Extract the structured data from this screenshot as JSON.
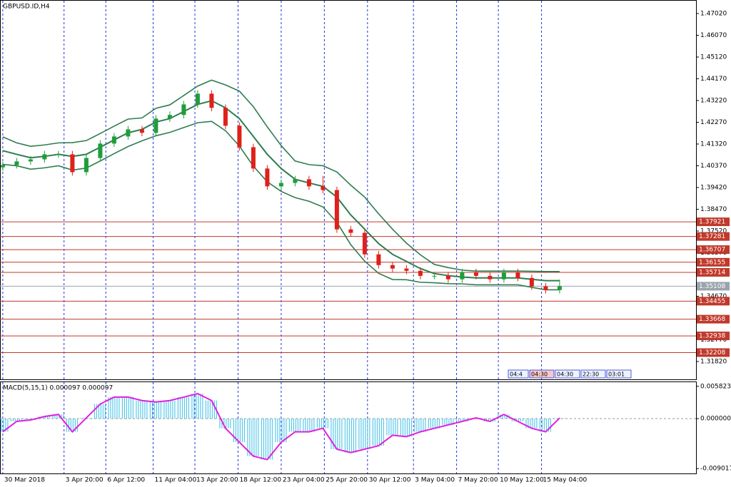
{
  "chart_data": [
    {
      "type": "candlestick",
      "title": "GBPUSD.ID,H4",
      "open": [
        1.403,
        1.404,
        1.4056,
        1.4065,
        1.4087,
        1.4087,
        1.4009,
        1.4071,
        1.4134,
        1.4165,
        1.4196,
        1.4181,
        1.4243,
        1.4259,
        1.4305,
        1.4352,
        1.429,
        1.4212,
        1.4118,
        1.4025,
        1.3947,
        1.3962,
        1.3978,
        1.3947,
        1.3931,
        1.3759,
        1.3744,
        1.365,
        1.3603,
        1.3588,
        1.3578,
        1.3556,
        1.3556,
        1.3541,
        1.3572,
        1.3556,
        1.3541,
        1.3572,
        1.3547,
        1.351,
        1.3494
      ],
      "high": [
        1.4055,
        1.4071,
        1.408,
        1.4102,
        1.4102,
        1.4102,
        1.4086,
        1.4149,
        1.418,
        1.4211,
        1.4211,
        1.4258,
        1.4274,
        1.432,
        1.4367,
        1.4367,
        1.4305,
        1.4227,
        1.4133,
        1.404,
        1.3977,
        1.3993,
        1.3993,
        1.3993,
        1.3946,
        1.3774,
        1.3759,
        1.3665,
        1.3618,
        1.3603,
        1.3593,
        1.3571,
        1.3571,
        1.3587,
        1.3587,
        1.3571,
        1.3587,
        1.3587,
        1.3562,
        1.3525,
        1.354
      ],
      "low": [
        1.4015,
        1.4025,
        1.4041,
        1.405,
        1.4072,
        1.3994,
        1.3994,
        1.4056,
        1.4119,
        1.415,
        1.4166,
        1.4166,
        1.4228,
        1.4244,
        1.429,
        1.4275,
        1.4197,
        1.4103,
        1.401,
        1.3932,
        1.3932,
        1.3947,
        1.3932,
        1.3916,
        1.3744,
        1.3729,
        1.3635,
        1.3588,
        1.3573,
        1.3563,
        1.3541,
        1.3541,
        1.3526,
        1.3526,
        1.3541,
        1.3526,
        1.3526,
        1.3532,
        1.3495,
        1.3479,
        1.3479
      ],
      "close": [
        1.404,
        1.4056,
        1.4065,
        1.4087,
        1.4087,
        1.4009,
        1.4071,
        1.4134,
        1.4165,
        1.4196,
        1.4181,
        1.4243,
        1.4259,
        1.4305,
        1.4352,
        1.429,
        1.4212,
        1.4118,
        1.4025,
        1.3947,
        1.3962,
        1.3978,
        1.3947,
        1.3931,
        1.3759,
        1.3744,
        1.365,
        1.3603,
        1.3588,
        1.3578,
        1.3556,
        1.3556,
        1.3541,
        1.3572,
        1.3556,
        1.3541,
        1.3572,
        1.3547,
        1.351,
        1.3494,
        1.3511
      ],
      "up_color": "#1f9d3a",
      "down_color": "#e0201b",
      "series": [
        {
          "color": "#2e7d4f",
          "values": [
            1.4163,
            1.4137,
            1.4122,
            1.4128,
            1.4137,
            1.4138,
            1.4147,
            1.4178,
            1.421,
            1.4241,
            1.4246,
            1.4288,
            1.4303,
            1.4344,
            1.4385,
            1.4411,
            1.439,
            1.4363,
            1.4295,
            1.4207,
            1.4125,
            1.4058,
            1.4042,
            1.4037,
            1.401,
            1.3952,
            1.39,
            1.3827,
            1.376,
            1.3699,
            1.3648,
            1.3606,
            1.3592,
            1.3581,
            1.3577,
            1.3577,
            1.3577,
            1.3577,
            1.3576,
            1.3575,
            1.3575
          ]
        },
        {
          "color": "#2e7d4f",
          "values": [
            1.4103,
            1.4087,
            1.4072,
            1.4078,
            1.4087,
            1.4078,
            1.4087,
            1.4118,
            1.415,
            1.4181,
            1.4196,
            1.4228,
            1.4243,
            1.4274,
            1.4305,
            1.4321,
            1.429,
            1.4243,
            1.4165,
            1.4087,
            1.4025,
            1.3978,
            1.3962,
            1.3947,
            1.39,
            1.3822,
            1.376,
            1.3697,
            1.365,
            1.3619,
            1.3588,
            1.3566,
            1.3557,
            1.3551,
            1.3547,
            1.3547,
            1.3547,
            1.3547,
            1.3541,
            1.3535,
            1.3535
          ]
        },
        {
          "color": "#2e7d4f",
          "values": [
            1.4043,
            1.4037,
            1.4022,
            1.4028,
            1.4037,
            1.4018,
            1.4027,
            1.4058,
            1.409,
            1.4121,
            1.4146,
            1.4168,
            1.4183,
            1.4204,
            1.4225,
            1.4231,
            1.419,
            1.4123,
            1.4035,
            1.3967,
            1.3925,
            1.3898,
            1.3882,
            1.3857,
            1.379,
            1.3692,
            1.362,
            1.3567,
            1.354,
            1.3539,
            1.3528,
            1.3526,
            1.3522,
            1.3521,
            1.3517,
            1.3517,
            1.3517,
            1.3517,
            1.3506,
            1.3495,
            1.3495
          ]
        }
      ],
      "levels": [
        1.37921,
        1.37281,
        1.36707,
        1.36155,
        1.35714,
        1.34455,
        1.33668,
        1.32938,
        1.32208
      ],
      "level_color": "#c0392b",
      "current_price": 1.35108,
      "xlim": [
        -0.2,
        49.8
      ],
      "ylim": [
        1.3104,
        1.4758
      ],
      "yticks": [
        {
          "value": 1.4702,
          "label": "1.47020"
        },
        {
          "value": 1.4607,
          "label": "1.46070"
        },
        {
          "value": 1.4512,
          "label": "1.45120"
        },
        {
          "value": 1.4417,
          "label": "1.44170"
        },
        {
          "value": 1.4322,
          "label": "1.43220"
        },
        {
          "value": 1.4227,
          "label": "1.42270"
        },
        {
          "value": 1.4132,
          "label": "1.41320"
        },
        {
          "value": 1.4037,
          "label": "1.40370"
        },
        {
          "value": 1.3942,
          "label": "1.39420"
        },
        {
          "value": 1.3847,
          "label": "1.38470"
        },
        {
          "value": 1.3752,
          "label": "1.37520"
        },
        {
          "value": 1.3657,
          "label": "1.36570"
        },
        {
          "value": 1.3467,
          "label": "1.34670"
        },
        {
          "value": 1.3277,
          "label": "1.32770"
        },
        {
          "value": 1.3182,
          "label": "1.31820"
        }
      ],
      "time_boxes": [
        "04:4",
        "04:30",
        "04:30",
        "22:30",
        "03:01"
      ]
    },
    {
      "type": "bar",
      "title": "MACD(5,15,1) 0.000097 0.000097",
      "color": "#5bc8e8",
      "line_color": "#e020e0",
      "values": [
        -0.00238,
        -0.0005,
        -0.00025,
        0.00038,
        0.00075,
        -0.00238,
        0.00013,
        0.00263,
        0.00388,
        0.00388,
        0.00326,
        0.00301,
        0.00326,
        0.00388,
        0.00451,
        0.00326,
        -0.00175,
        -0.00426,
        -0.00676,
        -0.00739,
        -0.00426,
        -0.00238,
        -0.00238,
        -0.00175,
        -0.00551,
        -0.00613,
        -0.00551,
        -0.00488,
        -0.003,
        -0.00325,
        -0.00238,
        -0.00175,
        -0.00113,
        -0.0005,
        0.00013,
        -0.0005,
        0.00075,
        -0.0005,
        -0.00175,
        -0.00238,
        9.7e-05
      ],
      "xlim": [
        -0.2,
        49.8
      ],
      "ylim": [
        -0.00989,
        0.00657
      ],
      "yticks": [
        0.005823,
        {
          "value": 0,
          "label": "0.000000"
        },
        -0.009017
      ],
      "xticks": [
        {
          "value": 0,
          "label": "30 Mar 2018"
        },
        {
          "value": 4.4,
          "label": "3 Apr 20:00"
        },
        {
          "value": 7.4,
          "label": "6 Apr 12:00"
        },
        {
          "value": 10.8,
          "label": "11 Apr 04:00"
        },
        {
          "value": 13.8,
          "label": "13 Apr 20:00"
        },
        {
          "value": 16.9,
          "label": "18 Apr 12:00"
        },
        {
          "value": 20,
          "label": "23 Apr 04:00"
        },
        {
          "value": 23.1,
          "label": "25 Apr 20:00"
        },
        {
          "value": 26.2,
          "label": "30 Apr 12:00"
        },
        {
          "value": 29.5,
          "label": "3 May 04:00"
        },
        {
          "value": 32.6,
          "label": "7 May 20:00"
        },
        {
          "value": 35.6,
          "label": "10 May 12:00"
        },
        {
          "value": 38.7,
          "label": "15 May 04:00"
        }
      ],
      "grid": true
    }
  ]
}
